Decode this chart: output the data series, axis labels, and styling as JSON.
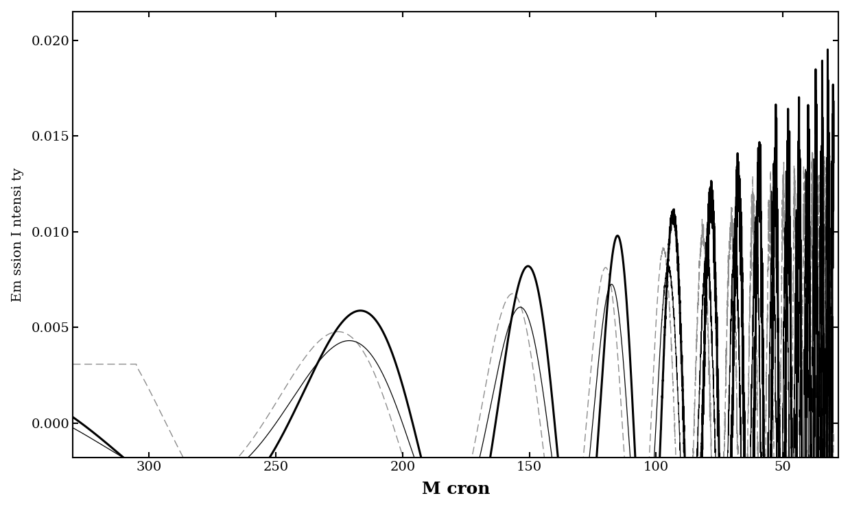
{
  "xlabel": "M cron",
  "ylabel": "Em ssion I ntensi ty",
  "xlim": [
    330,
    28
  ],
  "ylim": [
    -0.0018,
    0.0215
  ],
  "yticks": [
    0.0,
    0.005,
    0.01,
    0.015,
    0.02
  ],
  "ytick_labels": [
    "0.000",
    "0.005",
    "0.010",
    "0.015",
    "0.020"
  ],
  "xticks": [
    300,
    250,
    200,
    150,
    100,
    50
  ],
  "background_color": "#ffffff",
  "line_color_thick": "#000000",
  "line_color_thin": "#000000",
  "line_color_dash": "#777777",
  "xlabel_fontsize": 18,
  "ylabel_fontsize": 14,
  "tick_fontsize": 14,
  "figsize": [
    12.39,
    7.42
  ],
  "dpi": 100
}
